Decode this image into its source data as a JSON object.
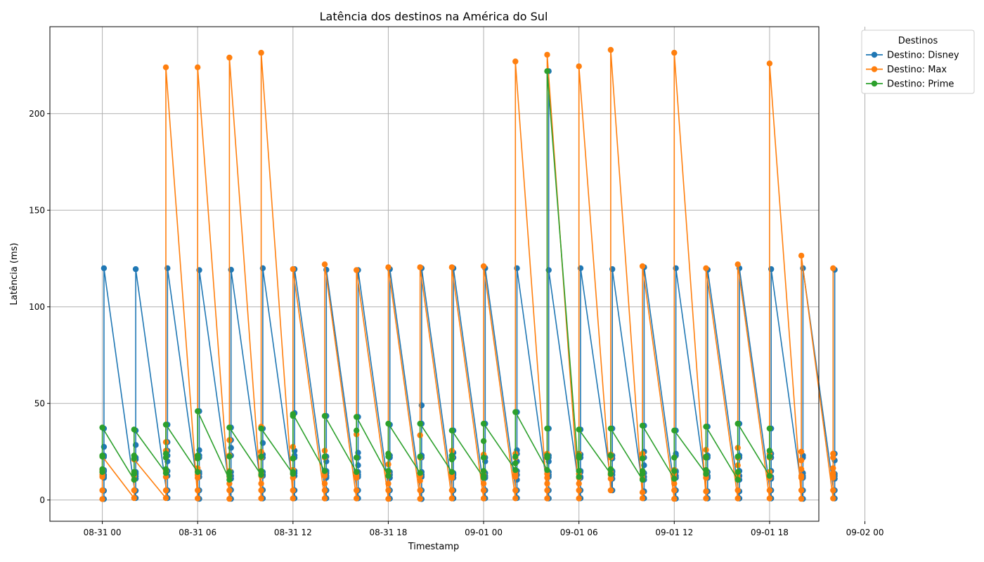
{
  "chart_data": {
    "type": "line",
    "title": "Latência dos destinos na América do Sul",
    "xlabel": "Timestamp",
    "ylabel": "Latência (ms)",
    "ylim": [
      -11,
      245
    ],
    "xlim": [
      -3.3,
      45.1
    ],
    "x_axis_type": "datetime (hours since 08-31 00)",
    "yticks": [
      0,
      50,
      100,
      150,
      200
    ],
    "xticks": [
      {
        "value": 0,
        "label": "08-31 00"
      },
      {
        "value": 6,
        "label": "08-31 06"
      },
      {
        "value": 12,
        "label": "08-31 12"
      },
      {
        "value": 18,
        "label": "08-31 18"
      },
      {
        "value": 24,
        "label": "09-01 00"
      },
      {
        "value": 30,
        "label": "09-01 06"
      },
      {
        "value": 36,
        "label": "09-01 12"
      },
      {
        "value": 42,
        "label": "09-01 18"
      },
      {
        "value": 48,
        "label": "09-02 00"
      }
    ],
    "grid": true,
    "legend": {
      "title": "Destinos",
      "placement": "outside top-right"
    },
    "series": [
      {
        "name": "Destino: Disney",
        "color": "#1f77b4",
        "groups": [
          {
            "x": 0.1,
            "values": [
              0.5,
              4.8,
              11.5,
              12.5,
              13.0,
              14.8,
              15.5,
              22.3,
              23.0,
              27.5,
              37.0,
              120.0
            ]
          },
          {
            "x": 2.1,
            "values": [
              1.0,
              4.8,
              11.0,
              12.3,
              13.5,
              14.5,
              21.0,
              22.0,
              28.5,
              36.0,
              119.5
            ]
          },
          {
            "x": 4.1,
            "values": [
              1.0,
              5.0,
              12.5,
              15.0,
              20.0,
              23.0,
              25.5,
              30.0,
              39.0,
              120.0
            ]
          },
          {
            "x": 6.1,
            "values": [
              0.6,
              5.0,
              12.0,
              13.5,
              14.5,
              22.0,
              23.0,
              25.8,
              46.0,
              119.0
            ]
          },
          {
            "x": 8.1,
            "values": [
              0.6,
              5.2,
              11.0,
              12.5,
              14.5,
              23.0,
              27.0,
              31.0,
              37.5,
              119.2
            ]
          },
          {
            "x": 10.1,
            "values": [
              0.8,
              5.2,
              12.5,
              13.0,
              14.5,
              22.0,
              23.5,
              29.5,
              37.0,
              120.0
            ]
          },
          {
            "x": 12.1,
            "values": [
              0.9,
              5.0,
              12.5,
              14.0,
              15.0,
              22.0,
              23.0,
              25.5,
              45.0,
              119.5
            ]
          },
          {
            "x": 14.1,
            "values": [
              0.9,
              5.0,
              11.5,
              12.5,
              14.0,
              15.0,
              20.0,
              22.5,
              43.5,
              119.2
            ]
          },
          {
            "x": 16.1,
            "values": [
              0.9,
              5.0,
              12.0,
              13.0,
              14.5,
              18.0,
              22.0,
              24.5,
              43.0,
              119.0
            ]
          },
          {
            "x": 18.1,
            "values": [
              0.7,
              5.0,
              11.5,
              13.0,
              14.5,
              22.0,
              23.0,
              39.0,
              119.5
            ]
          },
          {
            "x": 20.1,
            "values": [
              0.5,
              5.0,
              12.0,
              13.0,
              14.5,
              22.0,
              23.0,
              39.5,
              49.0,
              120.0
            ]
          },
          {
            "x": 22.1,
            "values": [
              0.8,
              5.0,
              11.5,
              13.0,
              14.0,
              22.0,
              24.5,
              36.0,
              120.0
            ]
          },
          {
            "x": 24.1,
            "values": [
              0.9,
              5.0,
              11.5,
              12.5,
              14.0,
              20.0,
              22.0,
              39.5,
              120.0
            ]
          },
          {
            "x": 26.1,
            "values": [
              1.0,
              5.0,
              10.5,
              13.0,
              15.0,
              20.0,
              24.0,
              25.8,
              45.5,
              120.0
            ]
          },
          {
            "x": 28.1,
            "values": [
              0.8,
              5.0,
              12.0,
              13.0,
              14.5,
              20.0,
              22.0,
              23.0,
              37.0,
              222.0,
              119.0
            ]
          },
          {
            "x": 30.1,
            "values": [
              0.9,
              5.0,
              11.5,
              12.0,
              14.5,
              15.0,
              22.0,
              23.5,
              36.5,
              120.0
            ]
          },
          {
            "x": 32.1,
            "values": [
              5.0,
              11.0,
              13.0,
              14.5,
              15.0,
              21.5,
              23.0,
              37.0,
              119.5
            ]
          },
          {
            "x": 34.1,
            "values": [
              0.9,
              4.5,
              10.5,
              12.0,
              14.0,
              18.0,
              22.0,
              25.0,
              38.5,
              120.5
            ]
          },
          {
            "x": 36.1,
            "values": [
              0.7,
              5.0,
              11.5,
              12.5,
              14.5,
              15.0,
              23.0,
              24.0,
              36.0,
              120.0
            ]
          },
          {
            "x": 38.1,
            "values": [
              0.8,
              4.5,
              11.5,
              12.5,
              14.5,
              22.0,
              23.0,
              38.0,
              119.2
            ]
          },
          {
            "x": 40.1,
            "values": [
              0.8,
              4.5,
              10.5,
              12.5,
              15.0,
              22.0,
              23.0,
              39.5,
              120.0
            ]
          },
          {
            "x": 42.1,
            "values": [
              0.8,
              5.0,
              11.0,
              12.0,
              15.0,
              22.0,
              24.0,
              37.0,
              119.5
            ]
          },
          {
            "x": 44.1,
            "values": [
              0.6,
              5.0,
              11.5,
              12.5,
              14.0,
              22.0,
              23.0,
              120.0
            ]
          },
          {
            "x": 46.1,
            "values": [
              0.8,
              5.0,
              11.0,
              12.5,
              13.5,
              20.5,
              24.0,
              119.2
            ]
          }
        ]
      },
      {
        "name": "Destino: Max",
        "color": "#ff7f0e",
        "groups": [
          {
            "x": 0.0,
            "values": [
              0.5,
              5.0,
              12.0,
              13.0,
              14.5,
              15.5,
              22.5
            ]
          },
          {
            "x": 2.0,
            "values": [
              1.0,
              5.0,
              10.5,
              12.5,
              13.5,
              14.5,
              21.0
            ]
          },
          {
            "x": 4.0,
            "values": [
              1.0,
              5.0,
              12.0,
              15.0,
              22.0,
              25.5,
              30.0,
              224.0
            ]
          },
          {
            "x": 6.0,
            "values": [
              0.8,
              5.0,
              11.5,
              13.0,
              15.0,
              16.5,
              22.0,
              224.0
            ]
          },
          {
            "x": 8.0,
            "values": [
              0.6,
              5.0,
              8.5,
              12.0,
              13.0,
              15.0,
              23.0,
              31.0,
              229.0
            ]
          },
          {
            "x": 10.0,
            "values": [
              0.8,
              5.0,
              8.5,
              12.5,
              14.0,
              22.0,
              25.0,
              38.0,
              231.5
            ]
          },
          {
            "x": 12.0,
            "values": [
              0.8,
              5.0,
              11.5,
              13.5,
              15.5,
              21.5,
              27.5,
              119.5
            ]
          },
          {
            "x": 14.0,
            "values": [
              0.8,
              5.0,
              8.5,
              12.5,
              14.0,
              22.0,
              25.5,
              122.0
            ]
          },
          {
            "x": 16.0,
            "values": [
              0.8,
              5.0,
              11.5,
              12.5,
              14.0,
              22.0,
              34.0,
              119.0
            ]
          },
          {
            "x": 18.0,
            "values": [
              0.6,
              5.0,
              8.5,
              12.5,
              14.0,
              18.5,
              24.0,
              120.5
            ]
          },
          {
            "x": 20.0,
            "values": [
              0.6,
              5.0,
              10.0,
              12.5,
              14.0,
              22.0,
              33.5,
              120.5
            ]
          },
          {
            "x": 22.0,
            "values": [
              0.8,
              5.0,
              11.5,
              13.0,
              14.0,
              22.0,
              25.5,
              120.5
            ]
          },
          {
            "x": 24.0,
            "values": [
              0.8,
              5.0,
              8.5,
              12.0,
              13.0,
              22.0,
              23.5,
              121.0
            ]
          },
          {
            "x": 26.0,
            "values": [
              0.9,
              5.0,
              12.0,
              13.0,
              14.5,
              22.0,
              24.0,
              227.0
            ]
          },
          {
            "x": 28.0,
            "values": [
              0.8,
              5.0,
              8.5,
              11.5,
              13.5,
              22.0,
              24.0,
              230.5
            ]
          },
          {
            "x": 30.0,
            "values": [
              0.8,
              5.0,
              8.5,
              11.5,
              13.5,
              22.0,
              24.0,
              224.5
            ]
          },
          {
            "x": 32.0,
            "values": [
              5.0,
              11.0,
              13.0,
              14.5,
              22.0,
              23.5,
              233.0
            ]
          },
          {
            "x": 34.0,
            "values": [
              0.9,
              4.0,
              11.0,
              13.0,
              14.5,
              22.0,
              24.0,
              121.0
            ]
          },
          {
            "x": 36.0,
            "values": [
              0.6,
              5.0,
              8.5,
              11.5,
              13.5,
              15.5,
              22.0,
              231.5
            ]
          },
          {
            "x": 38.0,
            "values": [
              0.8,
              4.5,
              11.5,
              13.0,
              14.5,
              22.0,
              26.0,
              120.0
            ]
          },
          {
            "x": 40.0,
            "values": [
              0.8,
              5.0,
              11.5,
              13.5,
              18.0,
              22.0,
              27.0,
              122.0
            ]
          },
          {
            "x": 42.0,
            "values": [
              0.8,
              5.0,
              11.5,
              13.0,
              14.5,
              22.0,
              24.0,
              226.0
            ]
          },
          {
            "x": 44.0,
            "values": [
              0.6,
              5.0,
              11.5,
              12.5,
              16.0,
              20.5,
              25.0,
              126.5
            ]
          },
          {
            "x": 46.0,
            "values": [
              0.8,
              5.0,
              11.5,
              12.5,
              14.0,
              16.5,
              22.0,
              24.0,
              120.0
            ]
          }
        ]
      },
      {
        "name": "Destino: Prime",
        "color": "#2ca02c",
        "groups": [
          {
            "x": 0.0,
            "values": [
              14.5,
              16.0,
              22.5,
              23.0,
              37.5
            ]
          },
          {
            "x": 2.0,
            "values": [
              10.5,
              13.5,
              14.5,
              21.5,
              23.0,
              36.5
            ]
          },
          {
            "x": 4.0,
            "values": [
              14.0,
              16.0,
              22.0,
              24.0,
              39.0
            ]
          },
          {
            "x": 6.0,
            "values": [
              14.5,
              21.5,
              23.0,
              46.0
            ]
          },
          {
            "x": 8.0,
            "values": [
              10.5,
              12.5,
              14.5,
              22.5,
              37.5
            ]
          },
          {
            "x": 10.0,
            "values": [
              13.0,
              15.0,
              22.5,
              37.0
            ]
          },
          {
            "x": 12.0,
            "values": [
              13.5,
              14.5,
              21.5,
              43.5,
              44.5
            ]
          },
          {
            "x": 14.0,
            "values": [
              15.0,
              22.5,
              43.5
            ]
          },
          {
            "x": 16.0,
            "values": [
              14.5,
              22.0,
              36.0,
              43.0
            ]
          },
          {
            "x": 18.0,
            "values": [
              12.5,
              15.0,
              22.5,
              24.0,
              39.5
            ]
          },
          {
            "x": 20.0,
            "values": [
              14.0,
              22.5,
              39.5
            ]
          },
          {
            "x": 22.0,
            "values": [
              14.5,
              21.0,
              23.0,
              36.0
            ]
          },
          {
            "x": 24.0,
            "values": [
              11.5,
              12.5,
              15.0,
              22.0,
              30.5,
              39.5
            ]
          },
          {
            "x": 26.0,
            "values": [
              15.5,
              19.0,
              22.5,
              45.5
            ]
          },
          {
            "x": 28.0,
            "values": [
              15.5,
              22.0,
              23.0,
              37.0,
              222.0
            ]
          },
          {
            "x": 30.0,
            "values": [
              12.0,
              15.0,
              22.0,
              23.0,
              36.5
            ]
          },
          {
            "x": 32.0,
            "values": [
              13.5,
              16.0,
              23.0,
              37.0
            ]
          },
          {
            "x": 34.0,
            "values": [
              10.5,
              13.5,
              15.0,
              21.5,
              38.5
            ]
          },
          {
            "x": 36.0,
            "values": [
              11.0,
              15.0,
              22.0,
              36.0
            ]
          },
          {
            "x": 38.0,
            "values": [
              13.5,
              15.5,
              22.0,
              22.5,
              38.0
            ]
          },
          {
            "x": 40.0,
            "values": [
              10.5,
              14.5,
              22.5,
              39.5
            ]
          },
          {
            "x": 42.0,
            "values": [
              12.5,
              22.5,
              25.5,
              37.0
            ]
          }
        ]
      }
    ]
  }
}
